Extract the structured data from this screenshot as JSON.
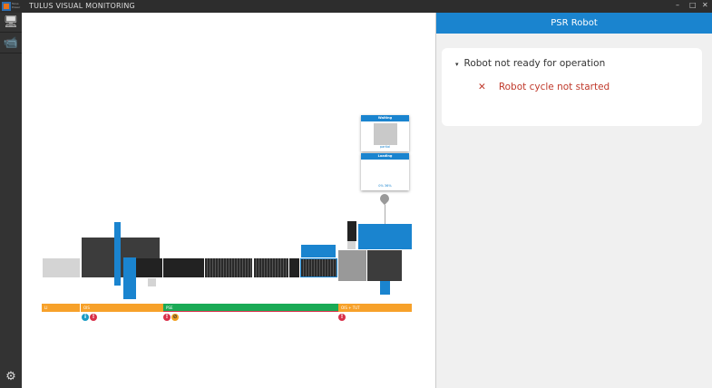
{
  "app": {
    "title": "TULUS VISUAL MONITORING",
    "logo_text": "Tulus Power"
  },
  "sidebar": {
    "items": [
      {
        "icon": "monitor-icon"
      },
      {
        "icon": "camera-icon"
      }
    ],
    "settings_icon": "gear-icon"
  },
  "panel": {
    "header": "PSR Robot",
    "issue": "Robot not ready for operation",
    "detail": "Robot cycle not started",
    "issue_toggle": "▾",
    "detail_icon": "✕"
  },
  "process": {
    "cards": [
      {
        "title": "Waiting",
        "caption": "partial"
      },
      {
        "title": "Loading",
        "caption": "0% 36%"
      }
    ],
    "segments": [
      {
        "label": "LI",
        "color": "#f7a12a"
      },
      {
        "label": "OIS",
        "color": "#f7a12a"
      },
      {
        "label": "PSE",
        "color": "#1aaa55"
      },
      {
        "label": "OIS + TUT",
        "color": "#f7a12a"
      }
    ],
    "alerts": [
      "info",
      "error",
      "error",
      "warning",
      "error"
    ]
  },
  "colors": {
    "accent": "#1a84cf",
    "orange": "#f7a12a",
    "green": "#1aaa55",
    "error": "#d9304a",
    "info": "#1a9bc4"
  }
}
